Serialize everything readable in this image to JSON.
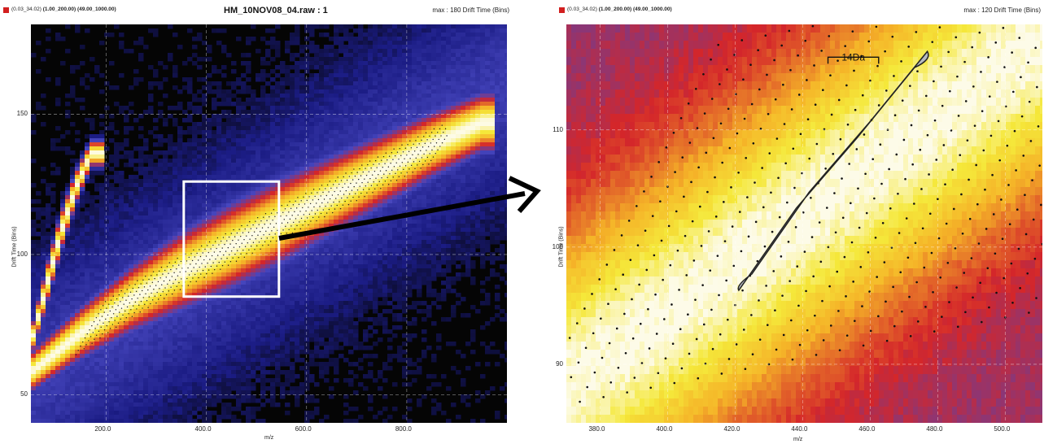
{
  "left_panel": {
    "header": {
      "params_prefix": "(0.03_34.02)",
      "params_bold": "(1.00_200.00) (49.00_1000.00)",
      "title": "HM_10NOV08_04.raw : 1",
      "max_text": "max : 180 Drift Time (Bins)"
    },
    "ylabel": "Drift Time (Bins)",
    "xlabel": "m/z"
  },
  "right_panel": {
    "header": {
      "params_prefix": "(0.03_34.02)",
      "params_bold": "(1.00_200.00) (49.00_1000.00)",
      "max_text": "max : 120 Drift Time (Bins)"
    },
    "ylabel": "Drift Time (Bins)",
    "xlabel": "m/z",
    "annotation": "14Da"
  },
  "colors": {
    "low": "#1b1c84",
    "mid": "#d4262a",
    "high": "#f5e83a",
    "peak": "#fdfbe8",
    "background": "#050505",
    "highlight_box": "#ffffff",
    "arrow": "#000000",
    "ellipse_fill": "#b6bac0"
  },
  "chart_data": [
    {
      "type": "heatmap",
      "title": "HM_10NOV08_04.raw : 1",
      "xlabel": "m/z",
      "ylabel": "Drift Time (Bins)",
      "xlim": [
        50,
        1000
      ],
      "ylim": [
        40,
        182
      ],
      "x_ticks": [
        "200.0",
        "400.0",
        "600.0",
        "800.0"
      ],
      "x_tick_values": [
        200,
        400,
        600,
        800
      ],
      "y_ticks": [
        "50",
        "100",
        "150"
      ],
      "y_tick_values": [
        50,
        100,
        150
      ],
      "grid": true,
      "bands": [
        {
          "name": "main",
          "x": [
            50,
            150,
            250,
            350,
            450,
            550,
            650,
            750,
            850,
            950
          ],
          "y": [
            58,
            72,
            84,
            94,
            103,
            112,
            121,
            130,
            139,
            147
          ],
          "width": [
            6,
            8,
            10,
            12,
            13,
            13,
            12,
            11,
            10,
            9
          ]
        },
        {
          "name": "upper",
          "x": [
            50,
            80,
            110,
            140,
            170
          ],
          "y": [
            68,
            88,
            108,
            124,
            136
          ],
          "width": [
            4,
            6,
            6,
            5,
            4
          ]
        }
      ],
      "zoom_region": {
        "x": [
          355,
          545
        ],
        "y": [
          85,
          126
        ]
      }
    },
    {
      "type": "heatmap",
      "xlabel": "m/z",
      "ylabel": "Drift Time (Bins)",
      "xlim": [
        370,
        511
      ],
      "ylim": [
        85,
        119
      ],
      "x_ticks": [
        "380.0",
        "400.0",
        "420.0",
        "440.0",
        "460.0",
        "480.0",
        "500.0"
      ],
      "x_tick_values": [
        380,
        400,
        420,
        440,
        460,
        480,
        500
      ],
      "y_ticks": [
        "90",
        "100",
        "110"
      ],
      "y_tick_values": [
        90,
        100,
        110
      ],
      "grid": true,
      "highlighted_series": {
        "x": [
          423,
          440,
          458,
          475
        ],
        "y": [
          97,
          104,
          110,
          116
        ]
      },
      "annotation": "14Da"
    }
  ]
}
